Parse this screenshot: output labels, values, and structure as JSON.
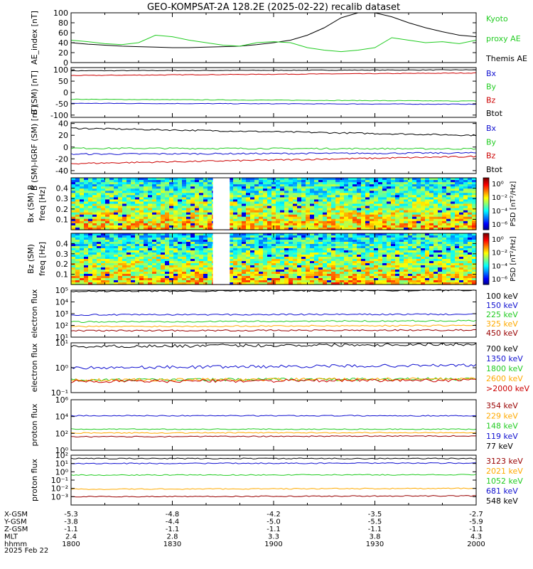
{
  "title": "GEO-KOMPSAT-2A 128.2E (2025-02-22) recalib dataset",
  "colors": {
    "black": "#000000",
    "blue": "#1010d0",
    "green": "#22cc22",
    "red": "#cc0000",
    "orange": "#ffaa00",
    "darkred": "#990000"
  },
  "chart_data": [
    {
      "id": "ae",
      "type": "line",
      "ylabel": "AE_index [nT]",
      "yticks": [
        "0",
        "20",
        "40",
        "60",
        "80",
        "100"
      ],
      "ylim": [
        0,
        100
      ],
      "legend": [
        {
          "text": "Kyoto",
          "color": "#22cc22"
        },
        {
          "text": "proxy AE",
          "color": "#22cc22"
        },
        {
          "text": "Themis AE",
          "color": "#000000"
        }
      ],
      "series": [
        {
          "name": "Themis AE",
          "color": "#000000",
          "x": [
            1800,
            1805,
            1810,
            1815,
            1820,
            1825,
            1830,
            1835,
            1840,
            1845,
            1850,
            1855,
            1900,
            1905,
            1910,
            1915,
            1920,
            1925,
            1930,
            1935,
            1940,
            1945,
            1950,
            1955,
            2000
          ],
          "y": [
            40,
            37,
            35,
            33,
            32,
            31,
            30,
            30,
            31,
            32,
            33,
            36,
            40,
            45,
            55,
            70,
            90,
            100,
            100,
            92,
            80,
            70,
            62,
            55,
            52
          ]
        },
        {
          "name": "Kyoto proxy AE",
          "color": "#22cc22",
          "x": [
            1800,
            1805,
            1810,
            1815,
            1820,
            1825,
            1830,
            1835,
            1840,
            1845,
            1850,
            1855,
            1900,
            1905,
            1910,
            1915,
            1920,
            1925,
            1930,
            1935,
            1940,
            1945,
            1950,
            1955,
            2000
          ],
          "y": [
            45,
            42,
            38,
            36,
            40,
            55,
            52,
            45,
            40,
            35,
            33,
            40,
            42,
            40,
            30,
            25,
            22,
            25,
            30,
            50,
            45,
            40,
            42,
            38,
            45
          ]
        }
      ]
    },
    {
      "id": "bsm",
      "type": "line",
      "ylabel": "B (SM) [nT]",
      "yticks": [
        "-100",
        "-50",
        "0",
        "50",
        "100"
      ],
      "ylim": [
        -110,
        110
      ],
      "legend": [
        {
          "text": "Bx",
          "color": "#1010d0"
        },
        {
          "text": "By",
          "color": "#22cc22"
        },
        {
          "text": "Bz",
          "color": "#cc0000"
        },
        {
          "text": "Btot",
          "color": "#000000"
        }
      ],
      "series": [
        {
          "name": "Btot",
          "color": "#000000",
          "x": [
            1800,
            2000
          ],
          "y": [
            96,
            100
          ]
        },
        {
          "name": "Bz",
          "color": "#cc0000",
          "x": [
            1800,
            2000
          ],
          "y": [
            75,
            86
          ]
        },
        {
          "name": "By",
          "color": "#22cc22",
          "x": [
            1800,
            2000
          ],
          "y": [
            -30,
            -38
          ]
        },
        {
          "name": "Bx",
          "color": "#1010d0",
          "x": [
            1800,
            2000
          ],
          "y": [
            -48,
            -52
          ]
        }
      ]
    },
    {
      "id": "bigrf",
      "type": "line",
      "ylabel": "B (SM)-IGRF (SM) [nT]",
      "yticks": [
        "-40",
        "-20",
        "0",
        "20",
        "40"
      ],
      "ylim": [
        -45,
        42
      ],
      "legend": [
        {
          "text": "Bx",
          "color": "#1010d0"
        },
        {
          "text": "By",
          "color": "#22cc22"
        },
        {
          "text": "Bz",
          "color": "#cc0000"
        },
        {
          "text": "Btot",
          "color": "#000000"
        }
      ],
      "series": [
        {
          "name": "Btot",
          "color": "#000000",
          "x": [
            1800,
            2000
          ],
          "y": [
            32,
            20
          ]
        },
        {
          "name": "By",
          "color": "#22cc22",
          "x": [
            1800,
            2000
          ],
          "y": [
            -2,
            -3
          ]
        },
        {
          "name": "Bx",
          "color": "#1010d0",
          "x": [
            1800,
            2000
          ],
          "y": [
            -12,
            -10
          ]
        },
        {
          "name": "Bz",
          "color": "#cc0000",
          "x": [
            1800,
            2000
          ],
          "y": [
            -28,
            -16
          ]
        }
      ]
    },
    {
      "id": "bx_psd",
      "type": "heatmap",
      "ylabel": "Bx (SM) B",
      "ylabel2": "freq [Hz]",
      "yticks": [
        "0.1",
        "0.2",
        "0.3",
        "0.4"
      ],
      "ylim": [
        0,
        0.5
      ],
      "colorbar_label": "PSD [nT²/Hz]",
      "colorbar_ticks": [
        "10⁰",
        "10⁻²",
        "10⁻⁴",
        "10⁻⁶"
      ],
      "gap": [
        1842,
        1847
      ]
    },
    {
      "id": "bz_psd",
      "type": "heatmap",
      "ylabel": "Bz (SM)",
      "ylabel2": "freq [Hz]",
      "yticks": [
        "0.1",
        "0.2",
        "0.3",
        "0.4"
      ],
      "ylim": [
        0,
        0.5
      ],
      "colorbar_label": "PSD [nT²/Hz]",
      "colorbar_ticks": [
        "10⁰",
        "10⁻²",
        "10⁻⁴",
        "10⁻⁶"
      ],
      "gap": [
        1842,
        1847
      ]
    },
    {
      "id": "e_low",
      "type": "line",
      "log": true,
      "ylabel": "electron flux",
      "yticks": [
        {
          "e": 1,
          "t": "10¹"
        },
        {
          "e": 2,
          "t": "10²"
        },
        {
          "e": 3,
          "t": "10³"
        },
        {
          "e": 4,
          "t": "10⁴"
        },
        {
          "e": 5,
          "t": "10⁵"
        }
      ],
      "ylim_exp": [
        1,
        5
      ],
      "legend": [
        {
          "text": "100 keV",
          "color": "#000000"
        },
        {
          "text": "150 keV",
          "color": "#1010d0"
        },
        {
          "text": "225 keV",
          "color": "#22cc22"
        },
        {
          "text": "325 keV",
          "color": "#ffaa00"
        },
        {
          "text": "450 keV",
          "color": "#990000"
        }
      ],
      "series": [
        {
          "name": "100 keV",
          "color": "#000000",
          "x": [
            1800,
            2000
          ],
          "y_exp": [
            4.9,
            5.0
          ]
        },
        {
          "name": "150 keV",
          "color": "#1010d0",
          "x": [
            1800,
            2000
          ],
          "y_exp": [
            2.9,
            2.95
          ]
        },
        {
          "name": "225 keV",
          "color": "#22cc22",
          "x": [
            1800,
            2000
          ],
          "y_exp": [
            2.3,
            2.4
          ]
        },
        {
          "name": "325 keV",
          "color": "#ffaa00",
          "x": [
            1800,
            2000
          ],
          "y_exp": [
            1.9,
            2.0
          ]
        },
        {
          "name": "450 keV",
          "color": "#990000",
          "x": [
            1800,
            2000
          ],
          "y_exp": [
            1.55,
            1.6
          ]
        }
      ]
    },
    {
      "id": "e_high",
      "type": "line",
      "log": true,
      "ylabel": "electron flux",
      "yticks": [
        {
          "e": -1,
          "t": "10⁻¹"
        },
        {
          "e": 0,
          "t": "10⁰"
        },
        {
          "e": 1,
          "t": "10¹"
        }
      ],
      "ylim_exp": [
        -1,
        1
      ],
      "legend": [
        {
          "text": "700 keV",
          "color": "#000000"
        },
        {
          "text": "1350 keV",
          "color": "#1010d0"
        },
        {
          "text": "1800 keV",
          "color": "#22cc22"
        },
        {
          "text": "2600 keV",
          "color": "#ffaa00"
        },
        {
          "text": ">2000 keV",
          "color": "#cc0000"
        }
      ],
      "series": [
        {
          "name": "700 keV",
          "color": "#000000",
          "x": [
            1800,
            2000
          ],
          "y_exp": [
            0.85,
            0.95
          ]
        },
        {
          "name": "1350 keV",
          "color": "#1010d0",
          "x": [
            1800,
            2000
          ],
          "y_exp": [
            0.0,
            0.1
          ]
        },
        {
          "name": "1800 keV",
          "color": "#22cc22",
          "x": [
            1800,
            2000
          ],
          "y_exp": [
            -0.5,
            -0.45
          ]
        },
        {
          "name": "2600 keV",
          "color": "#ffaa00",
          "x": [
            1800,
            2000
          ],
          "y_exp": [
            -0.5,
            -0.45
          ]
        },
        {
          "name": ">2000 keV",
          "color": "#cc0000",
          "x": [
            1800,
            2000
          ],
          "y_exp": [
            -0.55,
            -0.5
          ]
        }
      ]
    },
    {
      "id": "p_low",
      "type": "line",
      "log": true,
      "ylabel": "proton flux",
      "yticks": [
        {
          "e": 0,
          "t": "10⁰"
        },
        {
          "e": 2,
          "t": "10²"
        },
        {
          "e": 4,
          "t": "10⁴"
        },
        {
          "e": 6,
          "t": "10⁶"
        }
      ],
      "ylim_exp": [
        0,
        6
      ],
      "legend": [
        {
          "text": "354 keV",
          "color": "#990000"
        },
        {
          "text": "229 keV",
          "color": "#ffaa00"
        },
        {
          "text": "148 keV",
          "color": "#22cc22"
        },
        {
          "text": "119 keV",
          "color": "#1010d0"
        },
        {
          "text": "77 keV",
          "color": "#000000"
        }
      ],
      "series": [
        {
          "name": "119 keV",
          "color": "#1010d0",
          "x": [
            1800,
            2000
          ],
          "y_exp": [
            4.1,
            4.1
          ]
        },
        {
          "name": "148 keV",
          "color": "#22cc22",
          "x": [
            1800,
            2000
          ],
          "y_exp": [
            2.5,
            2.5
          ]
        },
        {
          "name": "229 keV",
          "color": "#ffaa00",
          "x": [
            1800,
            2000
          ],
          "y_exp": [
            2.05,
            2.1
          ]
        },
        {
          "name": "354 keV",
          "color": "#990000",
          "x": [
            1800,
            2000
          ],
          "y_exp": [
            1.6,
            1.7
          ]
        }
      ]
    },
    {
      "id": "p_high",
      "type": "line",
      "log": true,
      "ylabel": "proton flux",
      "yticks": [
        {
          "e": -3,
          "t": "10⁻³"
        },
        {
          "e": -2,
          "t": "10⁻²"
        },
        {
          "e": -1,
          "t": "10⁻¹"
        },
        {
          "e": 0,
          "t": "10⁰"
        },
        {
          "e": 1,
          "t": "10¹"
        },
        {
          "e": 2,
          "t": "10²"
        }
      ],
      "ylim_exp": [
        -4,
        2
      ],
      "legend": [
        {
          "text": "3123 keV",
          "color": "#990000"
        },
        {
          "text": "2021 keV",
          "color": "#ffaa00"
        },
        {
          "text": "1052 keV",
          "color": "#22cc22"
        },
        {
          "text": "681 keV",
          "color": "#1010d0"
        },
        {
          "text": "548 keV",
          "color": "#000000"
        }
      ],
      "series": [
        {
          "name": "548 keV",
          "color": "#000000",
          "x": [
            1800,
            2000
          ],
          "y_exp": [
            1.6,
            1.6
          ]
        },
        {
          "name": "681 keV",
          "color": "#1010d0",
          "x": [
            1800,
            2000
          ],
          "y_exp": [
            1.0,
            1.05
          ]
        },
        {
          "name": "1052 keV",
          "color": "#22cc22",
          "x": [
            1800,
            2000
          ],
          "y_exp": [
            -0.4,
            -0.35
          ]
        },
        {
          "name": "2021 keV",
          "color": "#ffaa00",
          "x": [
            1800,
            2000
          ],
          "y_exp": [
            -2.1,
            -2.0
          ]
        },
        {
          "name": "3123 keV",
          "color": "#990000",
          "x": [
            1800,
            2000
          ],
          "y_exp": [
            -3.0,
            -2.9
          ]
        }
      ]
    }
  ],
  "x_axis": {
    "ticks_hhmm": [
      1800,
      1830,
      1900,
      1930,
      2000
    ],
    "rows": [
      {
        "label": "X-GSM",
        "values": [
          "-5.3",
          "-4.8",
          "-4.2",
          "-3.5",
          "-2.7"
        ]
      },
      {
        "label": "Y-GSM",
        "values": [
          "-3.8",
          "-4.4",
          "-5.0",
          "-5.5",
          "-5.9"
        ]
      },
      {
        "label": "Z-GSM",
        "values": [
          "-1.1",
          "-1.1",
          "-1.1",
          "-1.1",
          "-1.1"
        ]
      },
      {
        "label": "MLT",
        "values": [
          "2.4",
          "2.8",
          "3.3",
          "3.8",
          "4.3"
        ]
      },
      {
        "label": "hhmm",
        "values": [
          "1800",
          "1830",
          "1900",
          "1930",
          "2000"
        ]
      }
    ],
    "date": "2025 Feb 22"
  }
}
